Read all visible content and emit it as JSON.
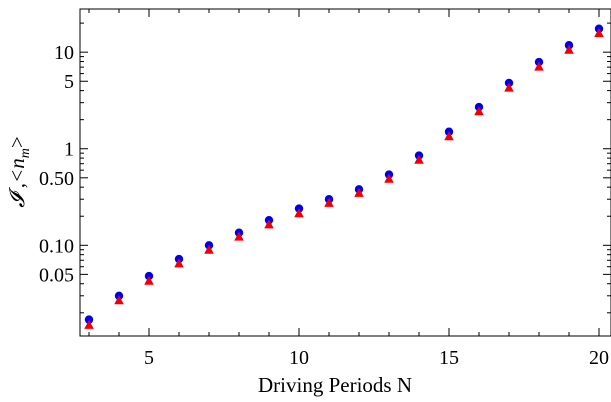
{
  "chart_data": {
    "type": "scatter",
    "title": "",
    "xlabel": "Driving Periods      N",
    "ylabel_main": "𝓘 ,<n",
    "ylabel_sub": "m",
    "ylabel_close": ">",
    "xlim": [
      2.7,
      20.4
    ],
    "ylim": [
      0.0115,
      28
    ],
    "yscale": "log",
    "grid": false,
    "x_ticks": [
      5,
      10,
      15,
      20
    ],
    "x_tick_labels": [
      "5",
      "10",
      "15",
      "20"
    ],
    "y_ticks": [
      0.05,
      0.1,
      0.5,
      1,
      5,
      10
    ],
    "y_tick_labels": [
      "0.05",
      "0.10",
      "0.50",
      "1",
      "5",
      "10"
    ],
    "series": [
      {
        "marker": "circle",
        "color": "#0000ee",
        "x": [
          3,
          4,
          5,
          6,
          7,
          8,
          9,
          10,
          11,
          12,
          13,
          14,
          15,
          16,
          17,
          18,
          19,
          20
        ],
        "y": [
          0.017,
          0.03,
          0.048,
          0.072,
          0.1,
          0.135,
          0.182,
          0.24,
          0.3,
          0.38,
          0.54,
          0.85,
          1.5,
          2.7,
          4.8,
          7.9,
          11.8,
          17.5
        ]
      },
      {
        "marker": "triangle",
        "color": "#ee0000",
        "x": [
          3,
          4,
          5,
          6,
          7,
          8,
          9,
          10,
          11,
          12,
          13,
          14,
          15,
          16,
          17,
          18,
          19,
          20
        ],
        "y": [
          0.015,
          0.027,
          0.043,
          0.065,
          0.09,
          0.123,
          0.165,
          0.215,
          0.275,
          0.35,
          0.49,
          0.77,
          1.35,
          2.45,
          4.3,
          7.1,
          10.6,
          15.8
        ]
      }
    ]
  }
}
